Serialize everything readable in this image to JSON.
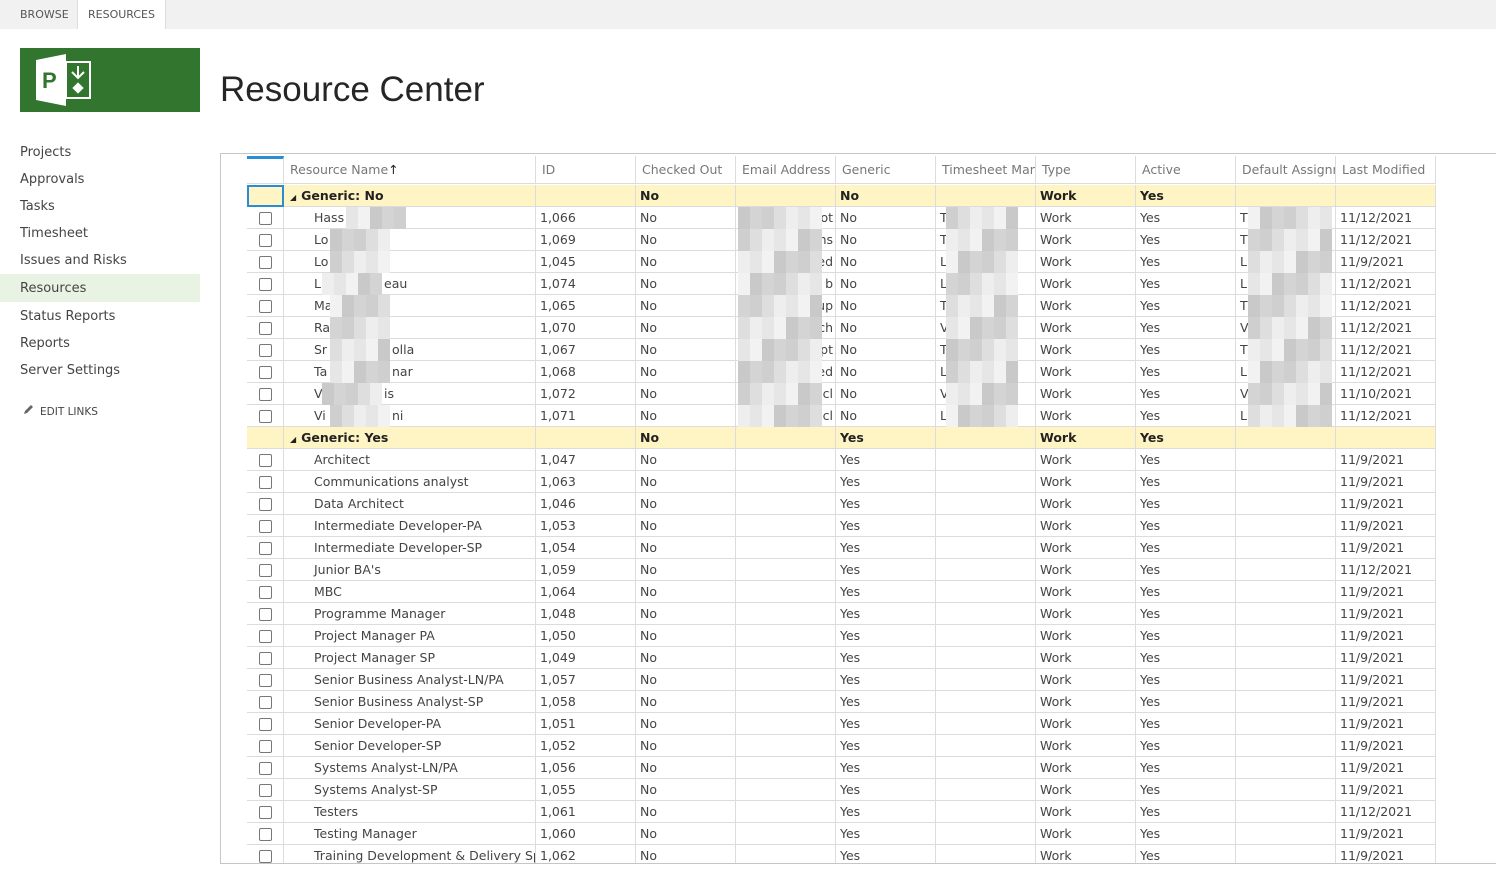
{
  "tabs": [
    "BROWSE",
    "RESOURCES"
  ],
  "header": {
    "title": "Resource Center"
  },
  "nav": {
    "items": [
      "Projects",
      "Approvals",
      "Tasks",
      "Timesheet",
      "Issues and Risks",
      "Resources",
      "Status Reports",
      "Reports",
      "Server Settings"
    ],
    "edit_links": "EDIT LINKS"
  },
  "table": {
    "columns": [
      "Resource Name",
      "ID",
      "Checked Out",
      "Email Address",
      "Generic",
      "Timesheet Man",
      "Type",
      "Active",
      "Default Assignr",
      "Last Modified"
    ],
    "sort_marker": "↑",
    "groups": [
      {
        "label": "Generic: No",
        "checked_out": "No",
        "generic": "No",
        "type": "Work",
        "active": "Yes",
        "rows": [
          {
            "name": "Hass",
            "id": "1,066",
            "checked_out": "No",
            "email": "ot",
            "generic": "No",
            "timesheet": "T",
            "type": "Work",
            "active": "Yes",
            "default": "T",
            "last_modified": "11/12/2021"
          },
          {
            "name": "Lo",
            "id": "1,069",
            "checked_out": "No",
            "email": "hs",
            "generic": "No",
            "timesheet": "T",
            "type": "Work",
            "active": "Yes",
            "default": "T",
            "last_modified": "11/12/2021"
          },
          {
            "name": "Lo",
            "id": "1,045",
            "checked_out": "No",
            "email": "ed",
            "generic": "No",
            "timesheet": "L",
            "type": "Work",
            "active": "Yes",
            "default": "L",
            "last_modified": "11/9/2021"
          },
          {
            "name": "L",
            "name_end": "eau",
            "id": "1,074",
            "checked_out": "No",
            "email": "b",
            "generic": "No",
            "timesheet": "L",
            "type": "Work",
            "active": "Yes",
            "default": "L",
            "last_modified": "11/12/2021"
          },
          {
            "name": "Ma",
            "id": "1,065",
            "checked_out": "No",
            "email": "up",
            "generic": "No",
            "timesheet": "T",
            "type": "Work",
            "active": "Yes",
            "default": "T",
            "last_modified": "11/12/2021"
          },
          {
            "name": "Ra",
            "id": "1,070",
            "checked_out": "No",
            "email": "ch",
            "generic": "No",
            "timesheet": "V",
            "type": "Work",
            "active": "Yes",
            "default": "V",
            "last_modified": "11/12/2021"
          },
          {
            "name": "Sr",
            "name_end": "olla",
            "id": "1,067",
            "checked_out": "No",
            "email": "pt",
            "generic": "No",
            "timesheet": "T",
            "type": "Work",
            "active": "Yes",
            "default": "T",
            "last_modified": "11/12/2021"
          },
          {
            "name": "Ta",
            "name_end": "nar",
            "id": "1,068",
            "checked_out": "No",
            "email": "ed",
            "generic": "No",
            "timesheet": "L",
            "type": "Work",
            "active": "Yes",
            "default": "L",
            "last_modified": "11/12/2021"
          },
          {
            "name": "V",
            "name_end": "is",
            "id": "1,072",
            "checked_out": "No",
            "email": "cl",
            "generic": "No",
            "timesheet": "V",
            "type": "Work",
            "active": "Yes",
            "default": "V",
            "last_modified": "11/10/2021"
          },
          {
            "name": "Vi",
            "name_end": "ni",
            "id": "1,071",
            "checked_out": "No",
            "email": "cl",
            "generic": "No",
            "timesheet": "L",
            "type": "Work",
            "active": "Yes",
            "default": "L",
            "last_modified": "11/12/2021"
          }
        ]
      },
      {
        "label": "Generic: Yes",
        "checked_out": "No",
        "generic": "Yes",
        "type": "Work",
        "active": "Yes",
        "rows": [
          {
            "name": "Architect",
            "id": "1,047",
            "checked_out": "No",
            "generic": "Yes",
            "type": "Work",
            "active": "Yes",
            "last_modified": "11/9/2021"
          },
          {
            "name": "Communications analyst",
            "id": "1,063",
            "checked_out": "No",
            "generic": "Yes",
            "type": "Work",
            "active": "Yes",
            "last_modified": "11/9/2021"
          },
          {
            "name": "Data Architect",
            "id": "1,046",
            "checked_out": "No",
            "generic": "Yes",
            "type": "Work",
            "active": "Yes",
            "last_modified": "11/9/2021"
          },
          {
            "name": "Intermediate Developer-PA",
            "id": "1,053",
            "checked_out": "No",
            "generic": "Yes",
            "type": "Work",
            "active": "Yes",
            "last_modified": "11/9/2021"
          },
          {
            "name": "Intermediate Developer-SP",
            "id": "1,054",
            "checked_out": "No",
            "generic": "Yes",
            "type": "Work",
            "active": "Yes",
            "last_modified": "11/9/2021"
          },
          {
            "name": "Junior BA's",
            "id": "1,059",
            "checked_out": "No",
            "generic": "Yes",
            "type": "Work",
            "active": "Yes",
            "last_modified": "11/12/2021"
          },
          {
            "name": "MBC",
            "id": "1,064",
            "checked_out": "No",
            "generic": "Yes",
            "type": "Work",
            "active": "Yes",
            "last_modified": "11/9/2021"
          },
          {
            "name": "Programme Manager",
            "id": "1,048",
            "checked_out": "No",
            "generic": "Yes",
            "type": "Work",
            "active": "Yes",
            "last_modified": "11/9/2021"
          },
          {
            "name": "Project Manager PA",
            "id": "1,050",
            "checked_out": "No",
            "generic": "Yes",
            "type": "Work",
            "active": "Yes",
            "last_modified": "11/9/2021"
          },
          {
            "name": "Project Manager SP",
            "id": "1,049",
            "checked_out": "No",
            "generic": "Yes",
            "type": "Work",
            "active": "Yes",
            "last_modified": "11/9/2021"
          },
          {
            "name": "Senior Business Analyst-LN/PA",
            "id": "1,057",
            "checked_out": "No",
            "generic": "Yes",
            "type": "Work",
            "active": "Yes",
            "last_modified": "11/9/2021"
          },
          {
            "name": "Senior Business Analyst-SP",
            "id": "1,058",
            "checked_out": "No",
            "generic": "Yes",
            "type": "Work",
            "active": "Yes",
            "last_modified": "11/9/2021"
          },
          {
            "name": "Senior Developer-PA",
            "id": "1,051",
            "checked_out": "No",
            "generic": "Yes",
            "type": "Work",
            "active": "Yes",
            "last_modified": "11/9/2021"
          },
          {
            "name": "Senior Developer-SP",
            "id": "1,052",
            "checked_out": "No",
            "generic": "Yes",
            "type": "Work",
            "active": "Yes",
            "last_modified": "11/9/2021"
          },
          {
            "name": "Systems Analyst-LN/PA",
            "id": "1,056",
            "checked_out": "No",
            "generic": "Yes",
            "type": "Work",
            "active": "Yes",
            "last_modified": "11/9/2021"
          },
          {
            "name": "Systems Analyst-SP",
            "id": "1,055",
            "checked_out": "No",
            "generic": "Yes",
            "type": "Work",
            "active": "Yes",
            "last_modified": "11/9/2021"
          },
          {
            "name": "Testers",
            "id": "1,061",
            "checked_out": "No",
            "generic": "Yes",
            "type": "Work",
            "active": "Yes",
            "last_modified": "11/12/2021"
          },
          {
            "name": "Testing Manager",
            "id": "1,060",
            "checked_out": "No",
            "generic": "Yes",
            "type": "Work",
            "active": "Yes",
            "last_modified": "11/9/2021"
          },
          {
            "name": "Training Development & Delivery Specialist",
            "id": "1,062",
            "checked_out": "No",
            "generic": "Yes",
            "type": "Work",
            "active": "Yes",
            "last_modified": "11/9/2021"
          }
        ]
      }
    ]
  }
}
